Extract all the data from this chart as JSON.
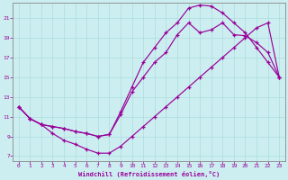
{
  "xlabel": "Windchill (Refroidissement éolien,°C)",
  "bg_color": "#cceef0",
  "grid_color": "#aadddd",
  "line_color": "#990099",
  "xlim": [
    -0.5,
    23.5
  ],
  "ylim": [
    6.5,
    22.5
  ],
  "xticks": [
    0,
    1,
    2,
    3,
    4,
    5,
    6,
    7,
    8,
    9,
    10,
    11,
    12,
    13,
    14,
    15,
    16,
    17,
    18,
    19,
    20,
    21,
    22,
    23
  ],
  "yticks": [
    7,
    9,
    11,
    13,
    15,
    17,
    19,
    21
  ],
  "curve_bottom_x": [
    0,
    1,
    2,
    3,
    4,
    5,
    6,
    7,
    8,
    9,
    10,
    11,
    12,
    13,
    14,
    15,
    16,
    17,
    18,
    19,
    20,
    21,
    22,
    23
  ],
  "curve_bottom_y": [
    12.0,
    10.8,
    10.2,
    9.3,
    8.6,
    8.2,
    7.7,
    7.3,
    7.3,
    8.0,
    9.0,
    10.0,
    11.0,
    12.0,
    13.0,
    14.0,
    15.0,
    16.0,
    17.0,
    18.0,
    19.0,
    20.0,
    20.5,
    15.0
  ],
  "curve_mid_x": [
    0,
    1,
    2,
    3,
    4,
    5,
    6,
    7,
    8,
    9,
    10,
    11,
    12,
    13,
    14,
    15,
    16,
    17,
    18,
    19,
    20,
    21,
    22,
    23
  ],
  "curve_mid_y": [
    12.0,
    10.8,
    10.2,
    10.0,
    9.8,
    9.5,
    9.3,
    9.0,
    9.2,
    11.2,
    13.5,
    15.0,
    16.5,
    17.5,
    19.3,
    20.5,
    19.5,
    19.8,
    20.5,
    19.3,
    19.2,
    18.5,
    17.5,
    15.0
  ],
  "curve_top_x": [
    0,
    1,
    2,
    3,
    4,
    5,
    6,
    7,
    8,
    9,
    10,
    11,
    12,
    13,
    14,
    15,
    16,
    17,
    18,
    19,
    20,
    21,
    22,
    23
  ],
  "curve_top_y": [
    12.0,
    10.8,
    10.2,
    10.0,
    9.8,
    9.5,
    9.3,
    9.0,
    9.2,
    11.5,
    14.0,
    16.5,
    18.0,
    19.5,
    20.5,
    22.0,
    22.3,
    22.2,
    21.5,
    20.5,
    19.5,
    18.0,
    16.5,
    15.0
  ]
}
